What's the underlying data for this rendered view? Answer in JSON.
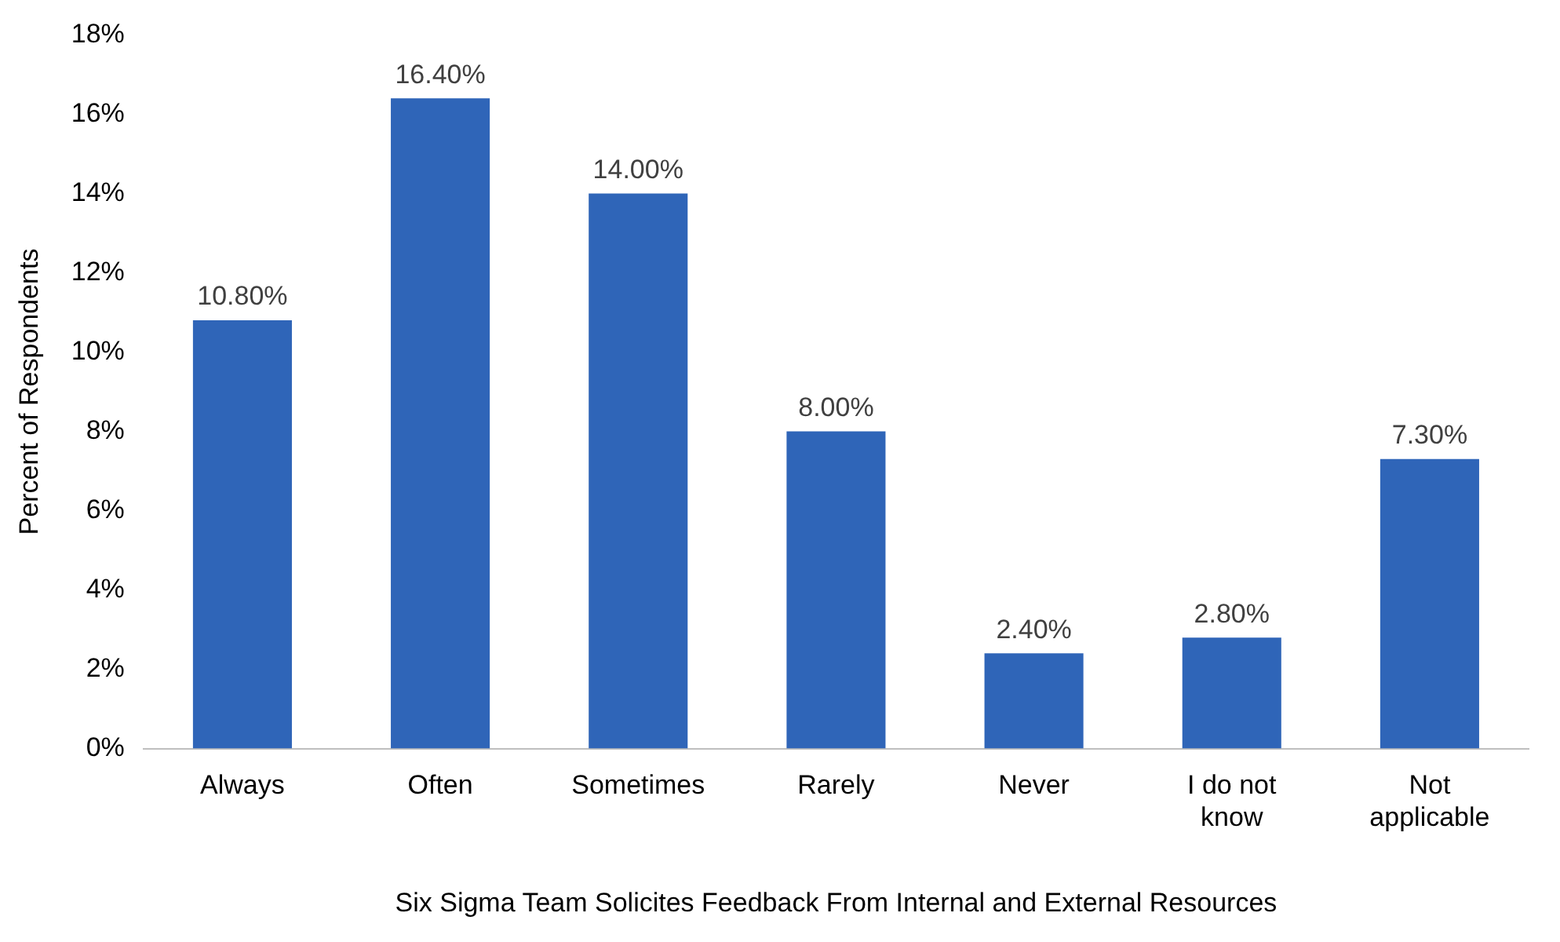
{
  "chart_data": {
    "type": "bar",
    "xlabel": "Six Sigma Team Solicites Feedback From Internal and External Resources",
    "ylabel": "Percent of Respondents",
    "categories": [
      "Always",
      "Often",
      "Sometimes",
      "Rarely",
      "Never",
      "I do not know",
      "Not applicable"
    ],
    "values": [
      10.8,
      16.4,
      14.0,
      8.0,
      2.4,
      2.8,
      7.3
    ],
    "value_labels": [
      "10.80%",
      "16.40%",
      "14.00%",
      "8.00%",
      "2.40%",
      "2.80%",
      "7.30%"
    ],
    "color": "#2f65b8",
    "ylim": [
      0,
      18
    ],
    "yticks": [
      {
        "value": 0,
        "label": "0%"
      },
      {
        "value": 2,
        "label": "2%"
      },
      {
        "value": 4,
        "label": "4%"
      },
      {
        "value": 6,
        "label": "6%"
      },
      {
        "value": 8,
        "label": "8%"
      },
      {
        "value": 10,
        "label": "10%"
      },
      {
        "value": 12,
        "label": "12%"
      },
      {
        "value": 14,
        "label": "14%"
      },
      {
        "value": 16,
        "label": "16%"
      },
      {
        "value": 18,
        "label": "18%"
      }
    ],
    "grid": false,
    "legend": false
  }
}
